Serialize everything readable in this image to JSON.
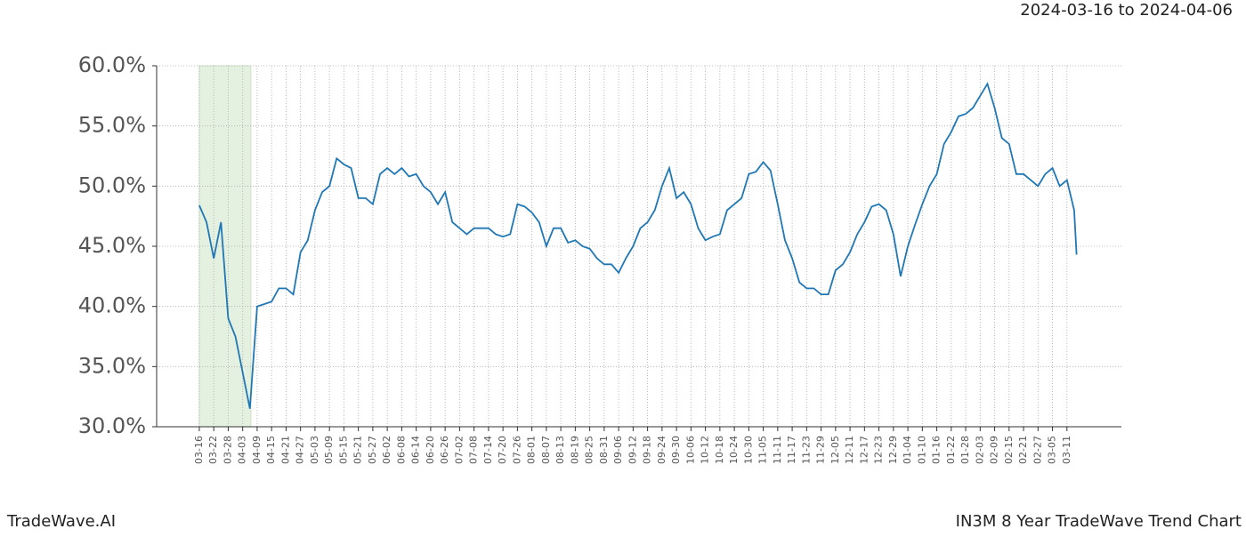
{
  "chart_data": {
    "type": "line",
    "date_range": "2024-03-16 to 2024-04-06",
    "brand": "TradeWave.AI",
    "title": "IN3M 8 Year TradeWave Trend Chart",
    "highlight_x": [
      0,
      21.4
    ],
    "grid": true,
    "xlim": [
      -17.7,
      382.6
    ],
    "ylim": [
      30,
      60
    ],
    "yticks": [
      {
        "value": 30,
        "label": "30.0%"
      },
      {
        "value": 35,
        "label": "35.0%"
      },
      {
        "value": 40,
        "label": "40.0%"
      },
      {
        "value": 45,
        "label": "45.0%"
      },
      {
        "value": 50,
        "label": "50.0%"
      },
      {
        "value": 55,
        "label": "55.0%"
      },
      {
        "value": 60,
        "label": "60.0%"
      }
    ],
    "xticks": [
      {
        "value": 0,
        "label": "03-16"
      },
      {
        "value": 6,
        "label": "03-22"
      },
      {
        "value": 12,
        "label": "03-28"
      },
      {
        "value": 18,
        "label": "04-03"
      },
      {
        "value": 24,
        "label": "04-09"
      },
      {
        "value": 30,
        "label": "04-15"
      },
      {
        "value": 36,
        "label": "04-21"
      },
      {
        "value": 42,
        "label": "04-27"
      },
      {
        "value": 48,
        "label": "05-03"
      },
      {
        "value": 54,
        "label": "05-09"
      },
      {
        "value": 60,
        "label": "05-15"
      },
      {
        "value": 66,
        "label": "05-21"
      },
      {
        "value": 72,
        "label": "05-27"
      },
      {
        "value": 78,
        "label": "06-02"
      },
      {
        "value": 84,
        "label": "06-08"
      },
      {
        "value": 90,
        "label": "06-14"
      },
      {
        "value": 96,
        "label": "06-20"
      },
      {
        "value": 102,
        "label": "06-26"
      },
      {
        "value": 108,
        "label": "07-02"
      },
      {
        "value": 114,
        "label": "07-08"
      },
      {
        "value": 120,
        "label": "07-14"
      },
      {
        "value": 126,
        "label": "07-20"
      },
      {
        "value": 132,
        "label": "07-26"
      },
      {
        "value": 138,
        "label": "08-01"
      },
      {
        "value": 144,
        "label": "08-07"
      },
      {
        "value": 150,
        "label": "08-13"
      },
      {
        "value": 156,
        "label": "08-19"
      },
      {
        "value": 162,
        "label": "08-25"
      },
      {
        "value": 168,
        "label": "08-31"
      },
      {
        "value": 174,
        "label": "09-06"
      },
      {
        "value": 180,
        "label": "09-12"
      },
      {
        "value": 186,
        "label": "09-18"
      },
      {
        "value": 192,
        "label": "09-24"
      },
      {
        "value": 198,
        "label": "09-30"
      },
      {
        "value": 204,
        "label": "10-06"
      },
      {
        "value": 210,
        "label": "10-12"
      },
      {
        "value": 216,
        "label": "10-18"
      },
      {
        "value": 222,
        "label": "10-24"
      },
      {
        "value": 228,
        "label": "10-30"
      },
      {
        "value": 234,
        "label": "11-05"
      },
      {
        "value": 240,
        "label": "11-11"
      },
      {
        "value": 246,
        "label": "11-17"
      },
      {
        "value": 252,
        "label": "11-23"
      },
      {
        "value": 258,
        "label": "11-29"
      },
      {
        "value": 264,
        "label": "12-05"
      },
      {
        "value": 270,
        "label": "12-11"
      },
      {
        "value": 276,
        "label": "12-17"
      },
      {
        "value": 282,
        "label": "12-23"
      },
      {
        "value": 288,
        "label": "12-29"
      },
      {
        "value": 294,
        "label": "01-04"
      },
      {
        "value": 300,
        "label": "01-10"
      },
      {
        "value": 306,
        "label": "01-16"
      },
      {
        "value": 312,
        "label": "01-22"
      },
      {
        "value": 318,
        "label": "01-28"
      },
      {
        "value": 324,
        "label": "02-03"
      },
      {
        "value": 330,
        "label": "02-09"
      },
      {
        "value": 336,
        "label": "02-15"
      },
      {
        "value": 342,
        "label": "02-21"
      },
      {
        "value": 348,
        "label": "02-27"
      },
      {
        "value": 354,
        "label": "03-05"
      },
      {
        "value": 360,
        "label": "03-11"
      }
    ],
    "x": [
      0,
      3,
      6,
      9,
      12,
      15,
      18,
      21,
      24,
      27,
      30,
      33,
      36,
      39,
      42,
      45,
      48,
      51,
      54,
      57,
      60,
      63,
      66,
      69,
      72,
      75,
      78,
      81,
      84,
      87,
      90,
      93,
      96,
      99,
      102,
      105,
      108,
      111,
      114,
      117,
      120,
      123,
      126,
      129,
      132,
      135,
      138,
      141,
      144,
      147,
      150,
      153,
      156,
      159,
      162,
      165,
      168,
      171,
      174,
      177,
      180,
      183,
      186,
      189,
      192,
      195,
      198,
      201,
      204,
      207,
      210,
      213,
      216,
      219,
      222,
      225,
      228,
      231,
      234,
      237,
      240,
      243,
      246,
      249,
      252,
      255,
      258,
      261,
      264,
      267,
      270,
      273,
      276,
      279,
      282,
      285,
      288,
      291,
      294,
      297,
      300,
      303,
      306,
      309,
      312,
      315,
      318,
      321,
      324,
      327,
      330,
      333,
      336,
      339,
      342,
      345,
      348,
      351,
      354,
      357,
      360,
      363,
      364
    ],
    "series": [
      {
        "color": "#1f77b4",
        "values": [
          48.4,
          47.0,
          44.0,
          47.0,
          39.0,
          37.5,
          34.5,
          31.5,
          40.0,
          40.2,
          40.4,
          41.5,
          41.5,
          41.0,
          44.5,
          45.5,
          48.0,
          49.5,
          50.0,
          52.3,
          51.8,
          51.5,
          49.0,
          49.0,
          48.5,
          51.0,
          51.5,
          51.0,
          51.5,
          50.8,
          51.0,
          50.0,
          49.5,
          48.5,
          49.5,
          47.0,
          46.5,
          46.0,
          46.5,
          46.5,
          46.5,
          46.0,
          45.8,
          46.0,
          48.5,
          48.3,
          47.8,
          47.0,
          45.0,
          46.5,
          46.5,
          45.3,
          45.5,
          45.0,
          44.8,
          44.0,
          43.5,
          43.5,
          42.8,
          44.0,
          45.0,
          46.5,
          47.0,
          48.0,
          50.0,
          51.5,
          49.0,
          49.5,
          48.5,
          46.5,
          45.5,
          45.8,
          46.0,
          48.0,
          48.5,
          49.0,
          51.0,
          51.2,
          52.0,
          51.3,
          48.5,
          45.5,
          44.0,
          42.0,
          41.5,
          41.5,
          41.0,
          41.0,
          43.0,
          43.5,
          44.5,
          46.0,
          47.0,
          48.3,
          48.5,
          48.0,
          46.0,
          42.5,
          45.0,
          46.8,
          48.5,
          50.0,
          51.0,
          53.5,
          54.5,
          55.8,
          56.0,
          56.5,
          57.5,
          58.5,
          56.5,
          54.0,
          53.5,
          51.0,
          51.0,
          50.5,
          50.0,
          51.0,
          51.5,
          50.0,
          50.5,
          48.0,
          44.3
        ]
      }
    ]
  }
}
